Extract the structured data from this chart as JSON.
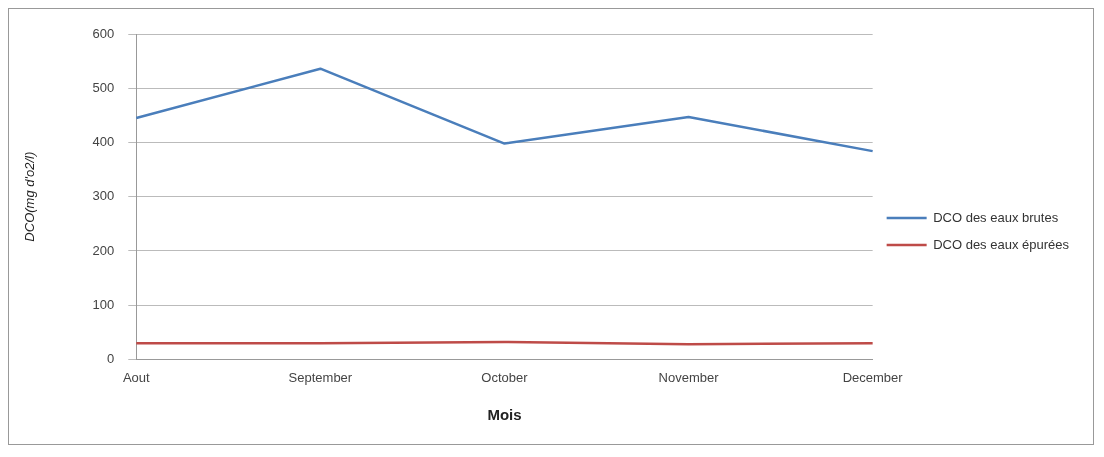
{
  "chart_data": {
    "type": "line",
    "xlabel": "Mois",
    "ylabel": "DCO(mg d'o2/l)",
    "categories": [
      "Aout",
      "September",
      "October",
      "November",
      "December"
    ],
    "series": [
      {
        "name": "DCO des eaux brutes",
        "color": "#4a7ebb",
        "values": [
          445,
          536,
          398,
          447,
          384
        ]
      },
      {
        "name": "DCO des eaux épurées",
        "color": "#be4b48",
        "values": [
          30,
          30,
          32,
          28,
          30
        ]
      }
    ],
    "ylim": [
      0,
      600
    ],
    "yticks": [
      0,
      100,
      200,
      300,
      400,
      500,
      600
    ],
    "grid": "y",
    "legend": "right",
    "marker": "none",
    "line_style": "solid"
  }
}
